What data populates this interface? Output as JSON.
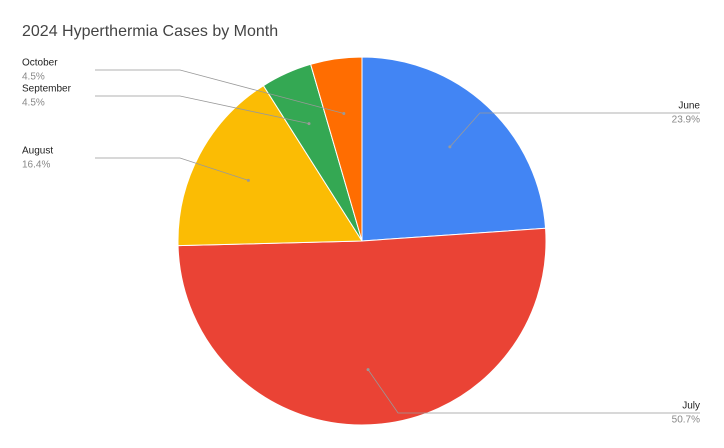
{
  "chart_data": {
    "type": "pie",
    "title": "2024 Hyperthermia Cases by Month",
    "categories": [
      "June",
      "July",
      "August",
      "September",
      "October"
    ],
    "values": [
      23.9,
      50.7,
      16.4,
      4.5,
      4.5
    ],
    "value_labels": [
      "23.9%",
      "50.7%",
      "16.4%",
      "4.5%",
      "4.5%"
    ],
    "colors": [
      "#4285f4",
      "#ea4335",
      "#fbbc04",
      "#34a853",
      "#ff6d01"
    ]
  }
}
